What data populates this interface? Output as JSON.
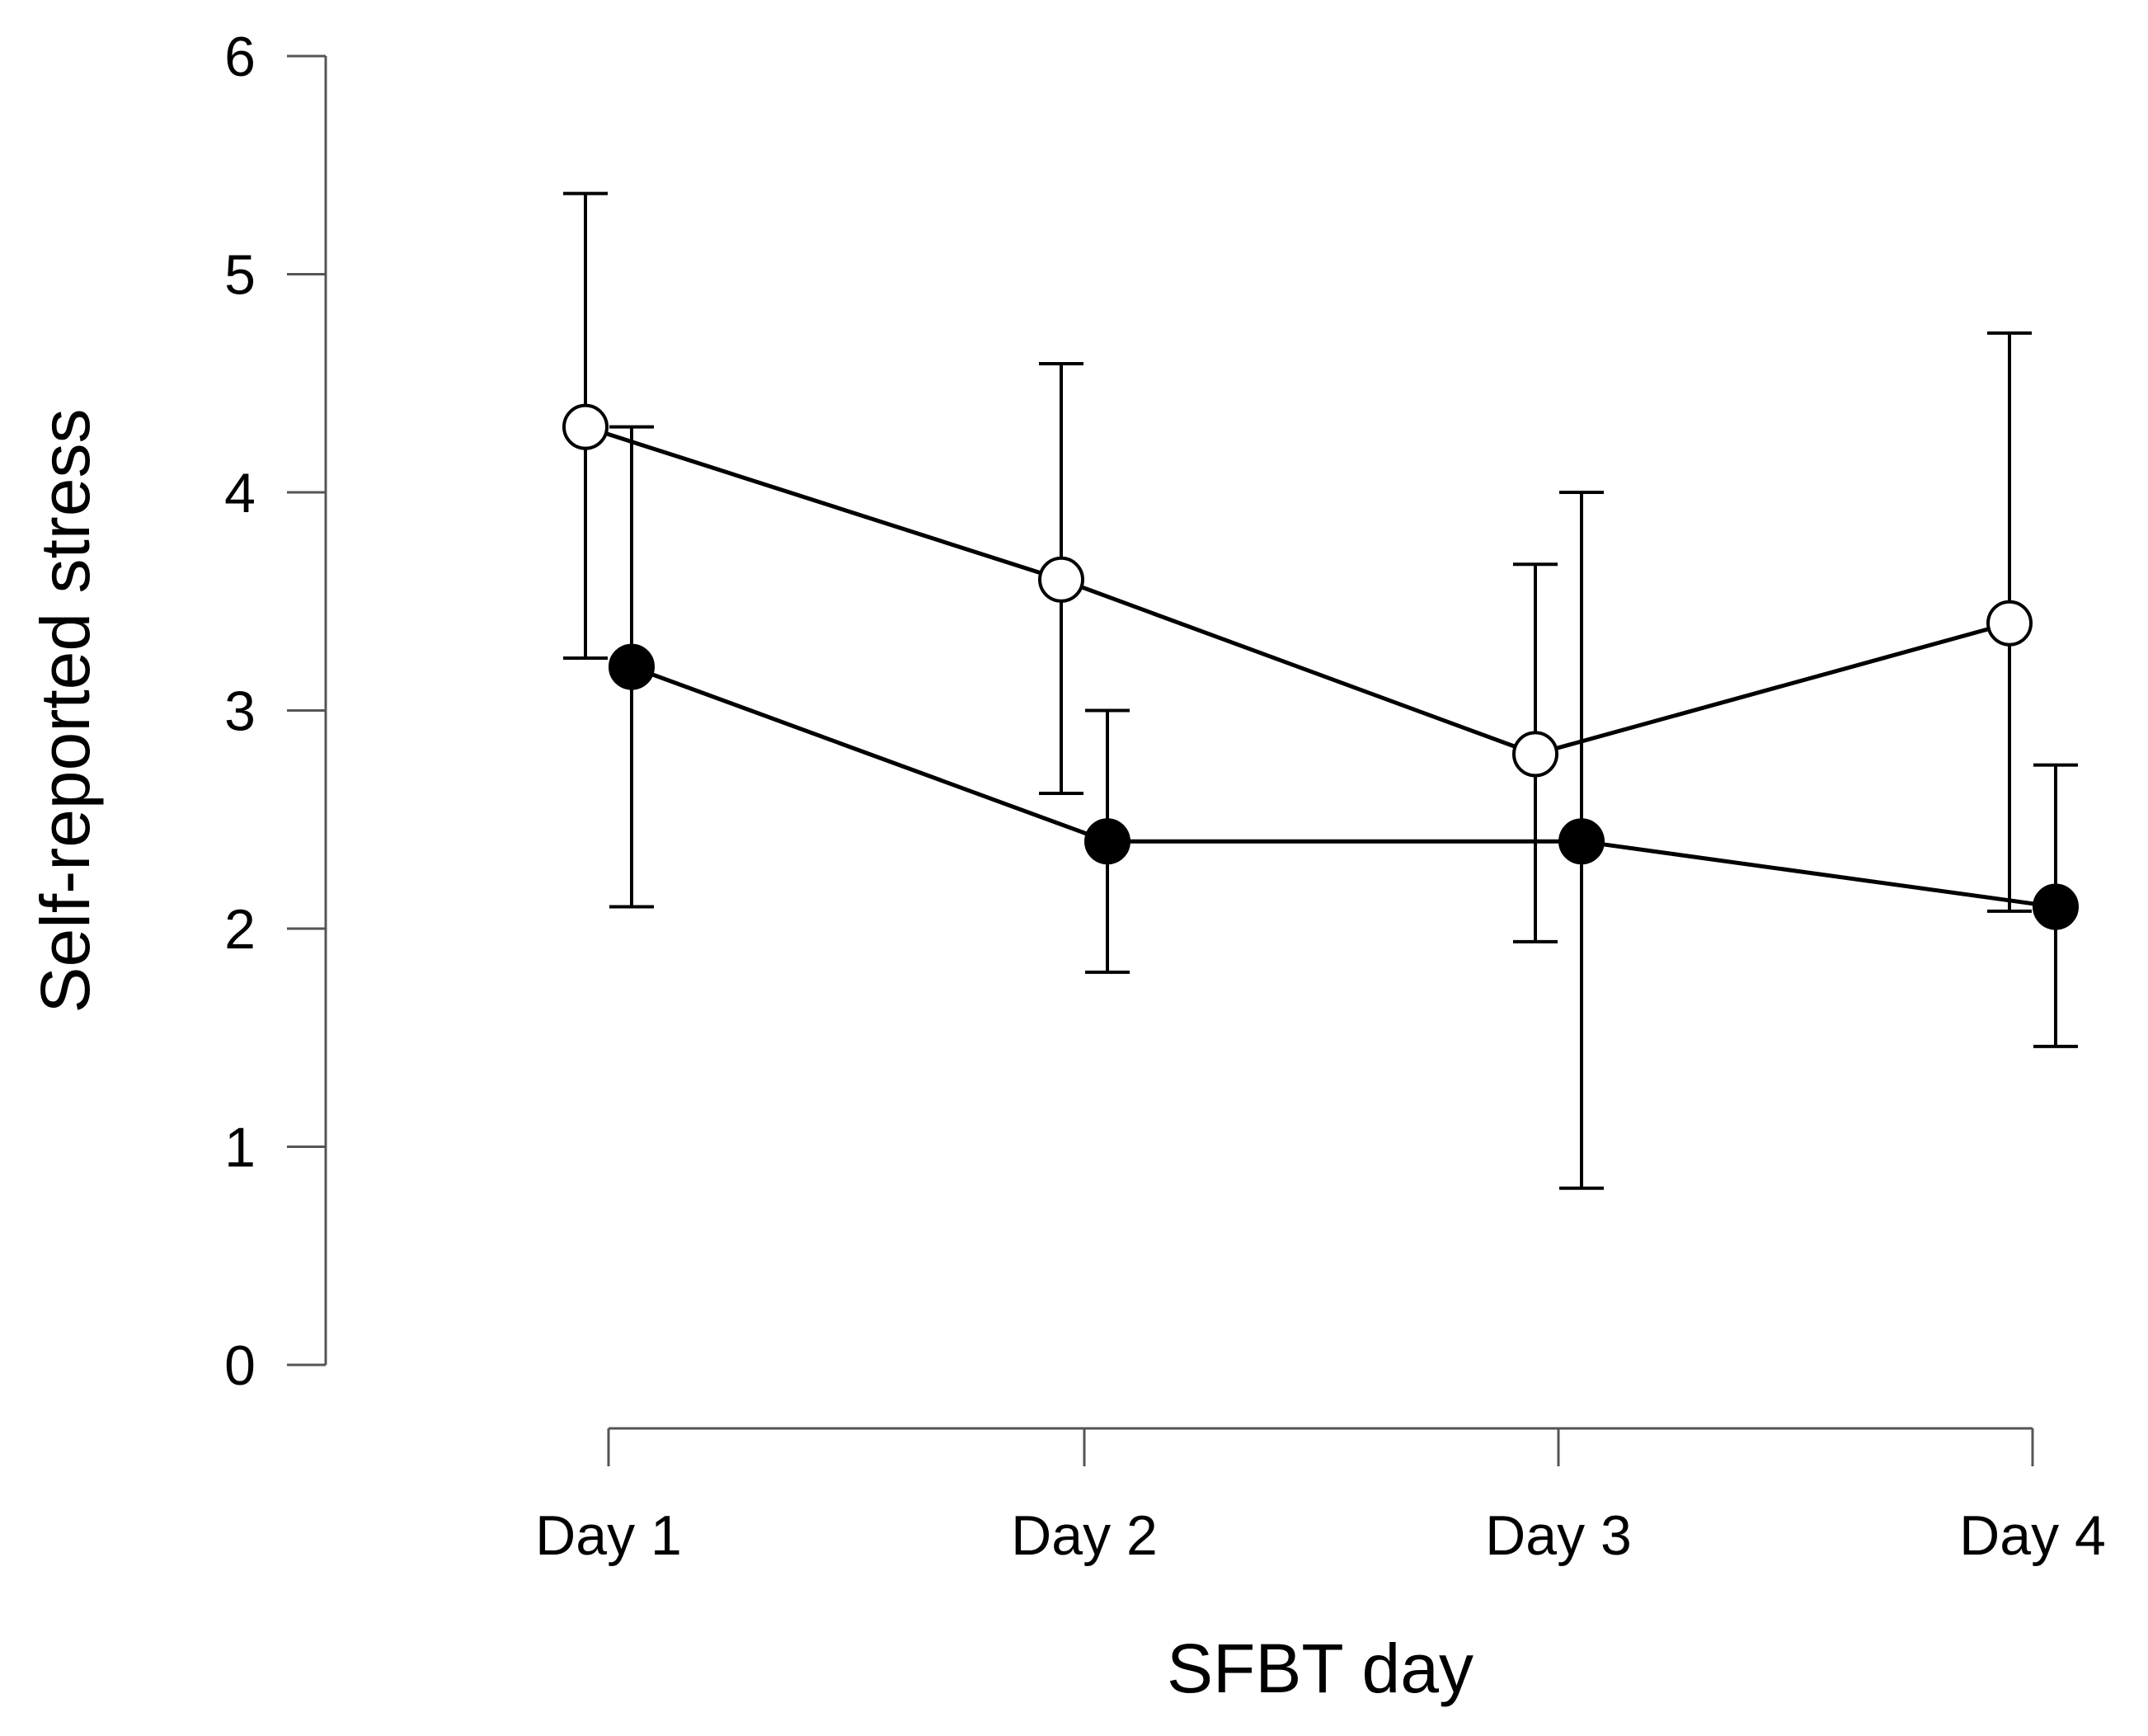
{
  "chart_data": {
    "type": "line",
    "title": "",
    "xlabel": "SFBT day",
    "ylabel": "Self-reported stress",
    "categories": [
      "Day 1",
      "Day 2",
      "Day 3",
      "Day 4"
    ],
    "ylim": [
      0,
      6
    ],
    "yticks": [
      0,
      1,
      2,
      3,
      4,
      5,
      6
    ],
    "grid": false,
    "legend": "none",
    "series": [
      {
        "name": "open-circles",
        "marker": "open-circle",
        "fill": "#ffffff",
        "values": [
          4.3,
          3.6,
          2.8,
          3.4
        ],
        "error_low": [
          3.24,
          2.62,
          1.94,
          2.08
        ],
        "error_high": [
          5.37,
          4.59,
          3.67,
          4.73
        ]
      },
      {
        "name": "filled-circles",
        "marker": "filled-circle",
        "fill": "#000000",
        "values": [
          3.2,
          2.4,
          2.4,
          2.1
        ],
        "error_low": [
          2.1,
          1.8,
          0.81,
          1.46
        ],
        "error_high": [
          4.3,
          3.0,
          4.0,
          2.75
        ]
      }
    ]
  }
}
